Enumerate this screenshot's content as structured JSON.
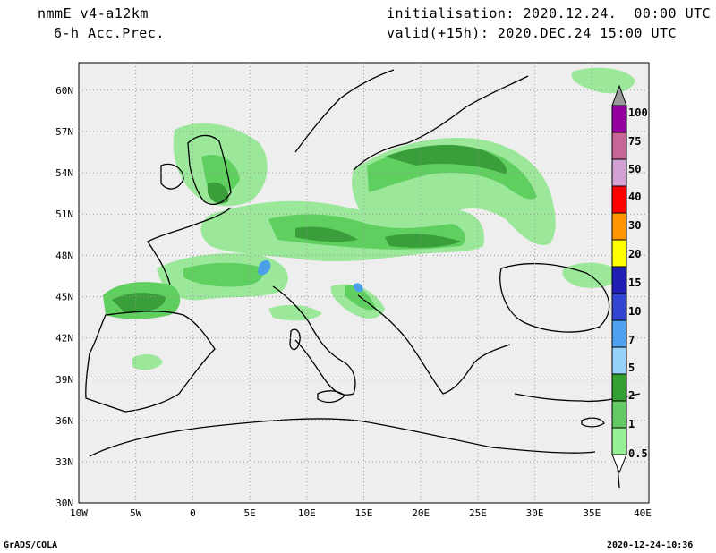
{
  "header": {
    "model": "nmmE_v4-a12km",
    "field": "6-h Acc.Prec.",
    "init": "initialisation: 2020.12.24.  00:00 UTC",
    "valid": "valid(+15h): 2020.DEC.24 15:00 UTC"
  },
  "map": {
    "lat_labels": [
      "60N",
      "57N",
      "54N",
      "51N",
      "48N",
      "45N",
      "42N",
      "39N",
      "36N",
      "33N",
      "30N"
    ],
    "lon_labels": [
      "10W",
      "5W",
      "0",
      "5E",
      "10E",
      "15E",
      "20E",
      "25E",
      "30E",
      "35E",
      "40E"
    ],
    "lat_range": [
      30,
      62
    ],
    "lon_range": [
      -10,
      40
    ],
    "colors": {
      "background": "#eeeeee",
      "land_outline": "#000000",
      "precip_light": "#9be89b",
      "precip_med": "#5fcf5f",
      "precip_heavy": "#3a9e3a",
      "precip_blue": "#4aa0e8"
    }
  },
  "legend": {
    "levels": [
      "100",
      "75",
      "50",
      "40",
      "30",
      "20",
      "15",
      "10",
      "7",
      "5",
      "2",
      "1",
      "0.5"
    ],
    "colors": [
      "#9400a0",
      "#c86496",
      "#d2a0d2",
      "#ff0000",
      "#ff9600",
      "#ffff00",
      "#1e1eb4",
      "#3246d2",
      "#50a0f0",
      "#96d2fa",
      "#32a032",
      "#64c864",
      "#96f096"
    ]
  },
  "footer": {
    "left": "GrADS/COLA",
    "right": "2020-12-24-10:36"
  }
}
